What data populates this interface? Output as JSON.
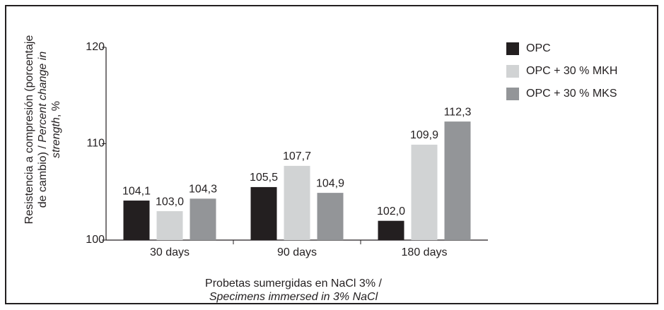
{
  "chart_data": {
    "type": "bar",
    "categories": [
      "30 days",
      "90 days",
      "180 days"
    ],
    "series": [
      {
        "name": "OPC",
        "color": "#231f20",
        "values": [
          104.1,
          105.5,
          102.0
        ],
        "value_labels": [
          "104,1",
          "105,5",
          "102,0"
        ]
      },
      {
        "name": "OPC + 30 % MKH",
        "color": "#d1d3d4",
        "values": [
          103.0,
          107.7,
          109.9
        ],
        "value_labels": [
          "103,0",
          "107,7",
          "109,9"
        ]
      },
      {
        "name": "OPC + 30 % MKS",
        "color": "#939598",
        "values": [
          104.3,
          104.9,
          112.3
        ],
        "value_labels": [
          "104,3",
          "104,9",
          "112,3"
        ]
      }
    ],
    "ylim": [
      100,
      120
    ],
    "yticks": [
      100,
      110,
      120
    ],
    "ylabel_lines": [
      [
        {
          "text": "Resistencia a compresión (porcentaje",
          "italic": false
        }
      ],
      [
        {
          "text": "de cambio) / ",
          "italic": false
        },
        {
          "text": "Percent change in",
          "italic": true
        }
      ],
      [
        {
          "text": "strength",
          "italic": true
        },
        {
          "text": ", %",
          "italic": false
        }
      ]
    ],
    "xlabel_lines": [
      [
        {
          "text": "Probetas sumergidas en NaCl 3% /",
          "italic": false
        }
      ],
      [
        {
          "text": "Specimens immersed in 3% NaCl",
          "italic": true
        }
      ]
    ],
    "legend": "top-right",
    "grid": false
  }
}
